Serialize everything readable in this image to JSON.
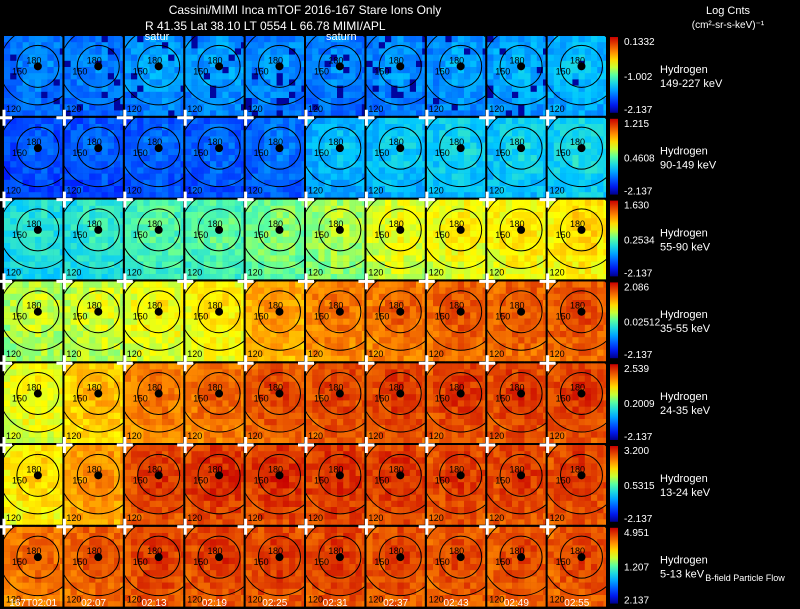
{
  "header": {
    "line1": "Cassini/MIMI Inca mTOF  2016-167    Stare    Ions Only",
    "line2": "R          41.35 Lat 38.10 LT 0554 L          66.78   MIMI/APL",
    "units_title": "Log Cnts",
    "units": "(cm²-sr-s-keV)⁻¹"
  },
  "footer_note": "B-field Particle Flow",
  "chart_data": {
    "type": "heatmap",
    "title": "Cassini/MIMI Inca mTOF  2016-167    Stare    Ions Only",
    "subtitle": "R          41.35 Lat 38.10 LT 0554 L          66.78   MIMI/APL",
    "columns": [
      "167T02:01",
      "02:07",
      "02:13",
      "02:19",
      "02:25",
      "02:31",
      "02:37",
      "02:43",
      "02:49",
      "02:55"
    ],
    "saturn_labels": [
      {
        "column": 2,
        "text": "satur"
      },
      {
        "column": 5,
        "text": "saturn"
      }
    ],
    "contour_labels": [
      "180",
      "150",
      "120"
    ],
    "rows": [
      {
        "species": "Hydrogen",
        "energy": "149-227 keV",
        "scale_max": "0.1332",
        "scale_mid": "-1.002",
        "scale_min": "-2.137",
        "intensity": [
          0.22,
          0.22,
          0.26,
          0.26,
          0.24,
          0.22,
          0.24,
          0.26,
          0.28,
          0.3
        ]
      },
      {
        "species": "Hydrogen",
        "energy": "90-149 keV",
        "scale_max": "1.215",
        "scale_mid": "0.4608",
        "scale_min": "-2.137",
        "intensity": [
          0.16,
          0.17,
          0.18,
          0.18,
          0.2,
          0.3,
          0.32,
          0.34,
          0.34,
          0.36
        ]
      },
      {
        "species": "Hydrogen",
        "energy": "55-90 keV",
        "scale_max": "1.630",
        "scale_mid": "0.2534",
        "scale_min": "-2.137",
        "intensity": [
          0.38,
          0.4,
          0.45,
          0.46,
          0.5,
          0.54,
          0.6,
          0.62,
          0.64,
          0.66
        ]
      },
      {
        "species": "Hydrogen",
        "energy": "35-55 keV",
        "scale_max": "2.086",
        "scale_mid": "0.02512",
        "scale_min": "-2.137",
        "intensity": [
          0.56,
          0.58,
          0.62,
          0.64,
          0.74,
          0.8,
          0.82,
          0.84,
          0.84,
          0.85
        ]
      },
      {
        "species": "Hydrogen",
        "energy": "24-35 keV",
        "scale_max": "2.539",
        "scale_mid": "0.2009",
        "scale_min": "-2.137",
        "intensity": [
          0.62,
          0.7,
          0.8,
          0.82,
          0.86,
          0.87,
          0.88,
          0.88,
          0.88,
          0.88
        ]
      },
      {
        "species": "Hydrogen",
        "energy": "13-24 keV",
        "scale_max": "3.200",
        "scale_mid": "0.5315",
        "scale_min": "-2.137",
        "intensity": [
          0.66,
          0.76,
          0.88,
          0.9,
          0.9,
          0.9,
          0.89,
          0.88,
          0.88,
          0.88
        ]
      },
      {
        "species": "Hydrogen",
        "energy": "5-13 keV",
        "scale_max": "4.951",
        "scale_mid": "1.207",
        "scale_min": "2.137",
        "intensity": [
          0.82,
          0.84,
          0.88,
          0.88,
          0.88,
          0.88,
          0.87,
          0.86,
          0.86,
          0.86
        ]
      }
    ]
  }
}
